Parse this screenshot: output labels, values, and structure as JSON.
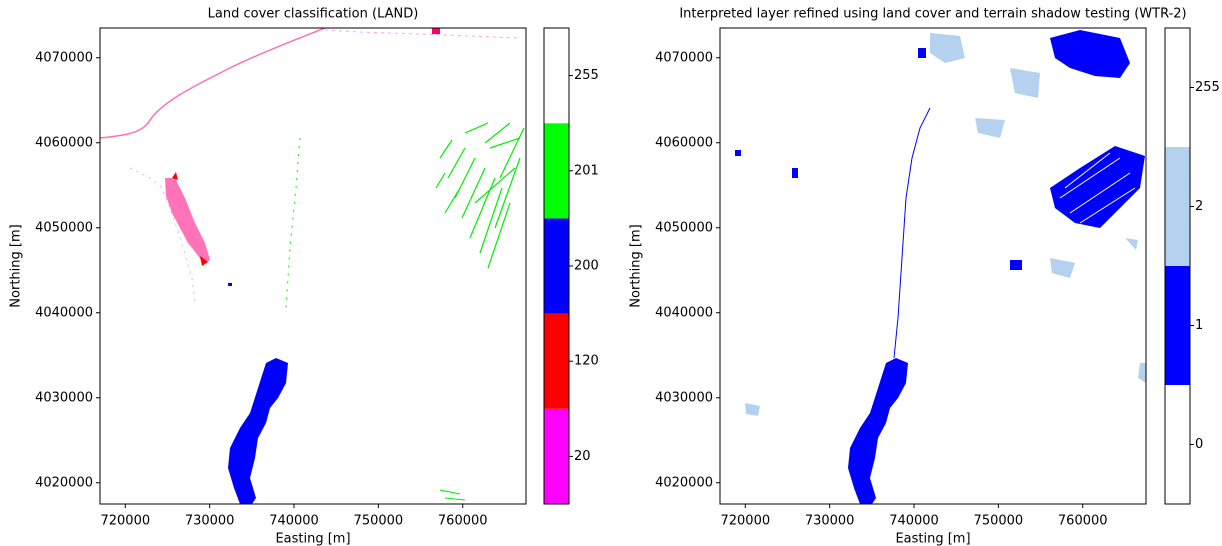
{
  "chart_data": [
    {
      "type": "raster",
      "title": "Land cover classification (LAND)",
      "xlabel": "Easting [m]",
      "ylabel": "Northing [m]",
      "xlim": [
        717000,
        767500
      ],
      "ylim": [
        4017500,
        4073500
      ],
      "xticks": [
        720000,
        730000,
        740000,
        750000,
        760000
      ],
      "yticks": [
        4020000,
        4030000,
        4040000,
        4050000,
        4060000,
        4070000
      ],
      "colorbar": {
        "categories": [
          20,
          120,
          200,
          201,
          255
        ],
        "colors": [
          "#ff00ff",
          "#ff0000",
          "#0000ff",
          "#00ff00",
          "#ffffff"
        ]
      }
    },
    {
      "type": "raster",
      "title": "Interpreted layer refined using land cover and terrain shadow testing (WTR-2)",
      "xlabel": "Easting [m]",
      "ylabel": "Northing [m]",
      "xlim": [
        717000,
        767500
      ],
      "ylim": [
        4017500,
        4073500
      ],
      "xticks": [
        720000,
        730000,
        740000,
        750000,
        760000
      ],
      "yticks": [
        4020000,
        4030000,
        4040000,
        4050000,
        4060000,
        4070000
      ],
      "colorbar": {
        "categories": [
          0,
          1,
          2,
          255
        ],
        "colors": [
          "#ffffff",
          "#0000ff",
          "#b4d2f0",
          "#ffffff"
        ]
      }
    }
  ]
}
